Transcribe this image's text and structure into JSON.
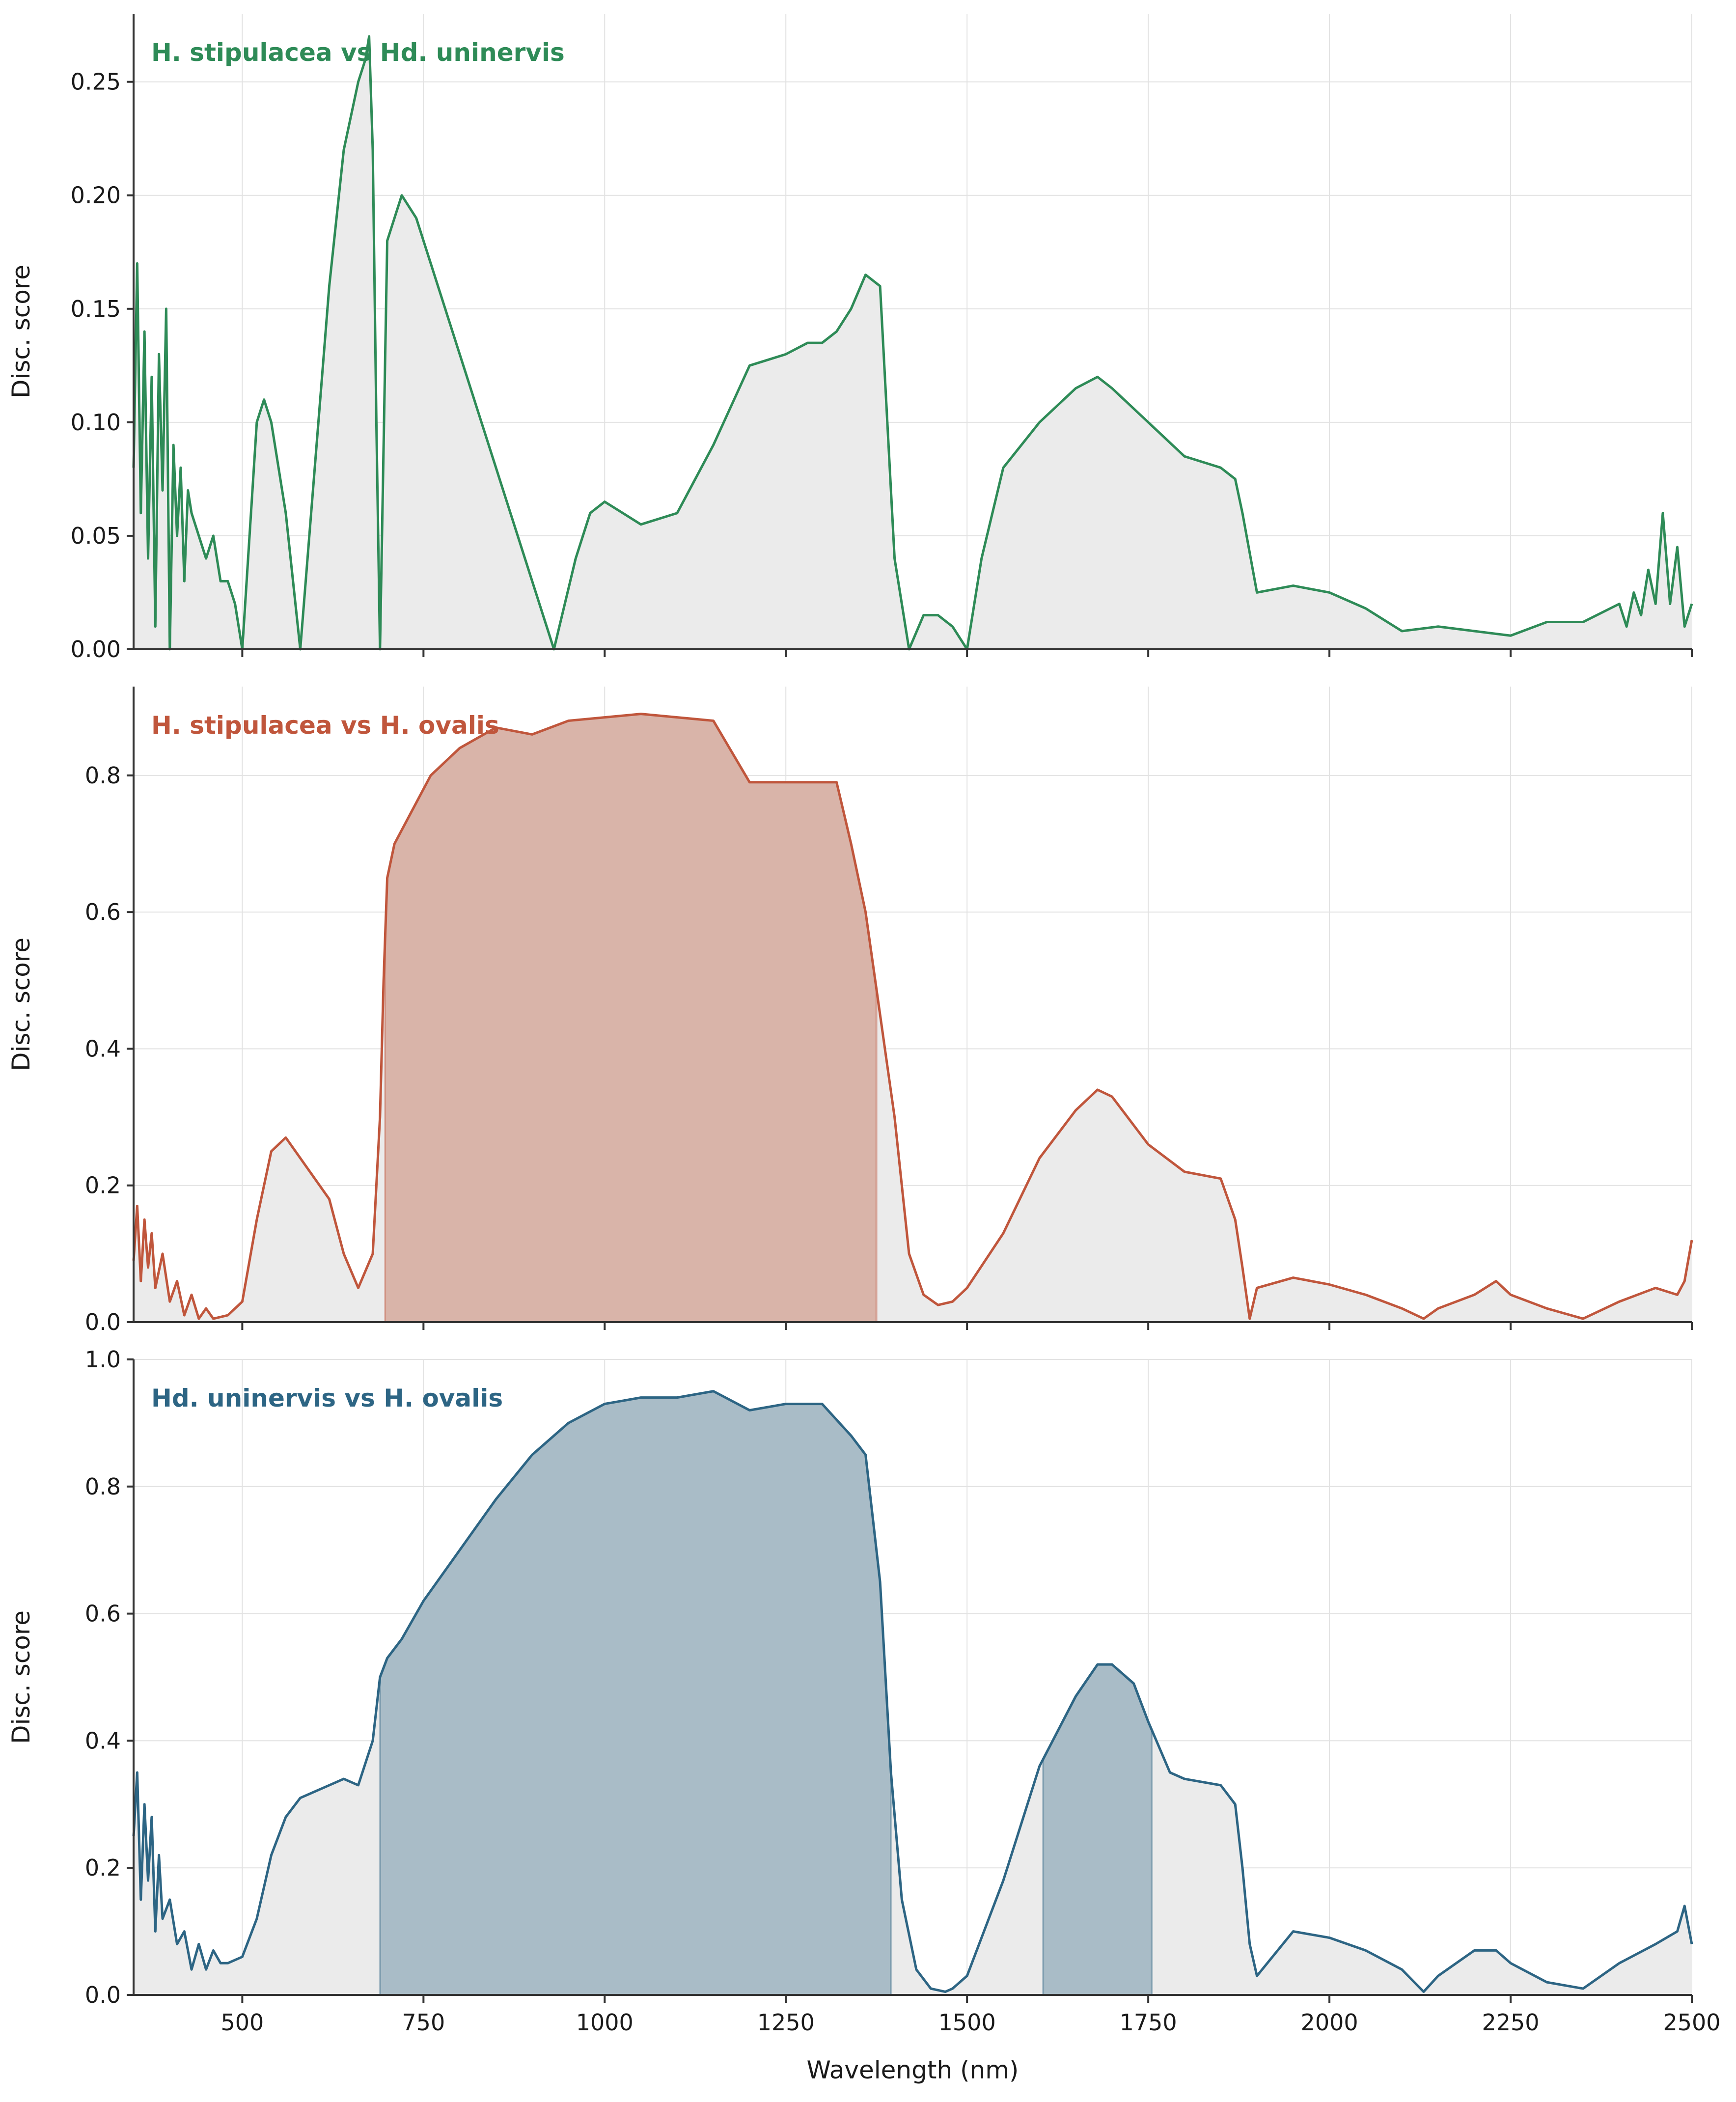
{
  "chart_data": [
    {
      "type": "area",
      "title": "H. stipulacea vs Hd. uninervis",
      "ylabel": "Disc. score",
      "xlabel": "",
      "xlim": [
        350,
        2500
      ],
      "ylim": [
        0,
        0.28
      ],
      "xticks": [
        500,
        750,
        1000,
        1250,
        1500,
        1750,
        2000,
        2250,
        2500
      ],
      "yticks": [
        0.0,
        0.05,
        0.1,
        0.15,
        0.2,
        0.25
      ],
      "ytick_labels": [
        "0.00",
        "0.05",
        "0.10",
        "0.15",
        "0.20",
        "0.25"
      ],
      "show_xtick_labels": false,
      "grid": true,
      "color": "#2e8b57",
      "fill_color": "#ebebeb",
      "highlight_color": "#c0614a",
      "highlight_ranges": [],
      "series": [
        {
          "x": [
            350,
            355,
            360,
            365,
            370,
            375,
            380,
            385,
            390,
            395,
            400,
            405,
            410,
            415,
            420,
            425,
            430,
            440,
            450,
            460,
            470,
            480,
            490,
            500,
            510,
            520,
            530,
            540,
            560,
            580,
            600,
            620,
            640,
            660,
            670,
            675,
            680,
            685,
            690,
            700,
            720,
            740,
            760,
            780,
            800,
            850,
            900,
            930,
            960,
            980,
            1000,
            1050,
            1100,
            1150,
            1200,
            1250,
            1280,
            1300,
            1320,
            1340,
            1360,
            1380,
            1400,
            1420,
            1440,
            1460,
            1480,
            1500,
            1520,
            1550,
            1600,
            1650,
            1680,
            1700,
            1750,
            1800,
            1850,
            1870,
            1880,
            1900,
            1950,
            2000,
            2050,
            2100,
            2150,
            2200,
            2250,
            2300,
            2350,
            2400,
            2410,
            2420,
            2430,
            2440,
            2450,
            2460,
            2470,
            2480,
            2490,
            2500
          ],
          "y": [
            0.08,
            0.17,
            0.06,
            0.14,
            0.04,
            0.12,
            0.01,
            0.13,
            0.07,
            0.15,
            0.0,
            0.09,
            0.05,
            0.08,
            0.03,
            0.07,
            0.06,
            0.05,
            0.04,
            0.05,
            0.03,
            0.03,
            0.02,
            0.0,
            0.05,
            0.1,
            0.11,
            0.1,
            0.06,
            0.0,
            0.08,
            0.16,
            0.22,
            0.25,
            0.26,
            0.27,
            0.22,
            0.1,
            0.0,
            0.18,
            0.2,
            0.19,
            0.17,
            0.15,
            0.13,
            0.08,
            0.03,
            0.0,
            0.04,
            0.06,
            0.065,
            0.055,
            0.06,
            0.09,
            0.125,
            0.13,
            0.135,
            0.135,
            0.14,
            0.15,
            0.165,
            0.16,
            0.04,
            0.0,
            0.015,
            0.015,
            0.01,
            0.0,
            0.04,
            0.08,
            0.1,
            0.115,
            0.12,
            0.115,
            0.1,
            0.085,
            0.08,
            0.075,
            0.06,
            0.025,
            0.028,
            0.025,
            0.018,
            0.008,
            0.01,
            0.008,
            0.006,
            0.012,
            0.012,
            0.02,
            0.01,
            0.025,
            0.015,
            0.035,
            0.02,
            0.06,
            0.02,
            0.045,
            0.01,
            0.02
          ]
        }
      ]
    },
    {
      "type": "area",
      "title": "H. stipulacea vs H. ovalis",
      "ylabel": "Disc. score",
      "xlabel": "",
      "xlim": [
        350,
        2500
      ],
      "ylim": [
        0,
        0.93
      ],
      "xticks": [
        500,
        750,
        1000,
        1250,
        1500,
        1750,
        2000,
        2250,
        2500
      ],
      "yticks": [
        0.0,
        0.2,
        0.4,
        0.6,
        0.8
      ],
      "ytick_labels": [
        "0.0",
        "0.2",
        "0.4",
        "0.6",
        "0.8"
      ],
      "show_xtick_labels": false,
      "grid": true,
      "color": "#c0563c",
      "fill_color": "#ebebeb",
      "highlight_color": "#d9b4a9",
      "highlight_ranges": [
        [
          697,
          1375
        ]
      ],
      "series": [
        {
          "x": [
            350,
            355,
            360,
            365,
            370,
            375,
            380,
            390,
            400,
            410,
            420,
            430,
            440,
            450,
            460,
            480,
            500,
            520,
            540,
            560,
            580,
            600,
            620,
            640,
            660,
            680,
            690,
            695,
            700,
            710,
            720,
            740,
            760,
            800,
            850,
            900,
            950,
            1000,
            1050,
            1100,
            1150,
            1200,
            1250,
            1300,
            1320,
            1340,
            1360,
            1380,
            1400,
            1420,
            1440,
            1460,
            1480,
            1500,
            1550,
            1600,
            1650,
            1680,
            1700,
            1750,
            1800,
            1850,
            1870,
            1880,
            1890,
            1900,
            1950,
            2000,
            2050,
            2100,
            2130,
            2150,
            2200,
            2230,
            2250,
            2300,
            2350,
            2400,
            2450,
            2480,
            2490,
            2500
          ],
          "y": [
            0.09,
            0.17,
            0.06,
            0.15,
            0.08,
            0.13,
            0.05,
            0.1,
            0.03,
            0.06,
            0.01,
            0.04,
            0.005,
            0.02,
            0.005,
            0.01,
            0.03,
            0.15,
            0.25,
            0.27,
            0.24,
            0.21,
            0.18,
            0.1,
            0.05,
            0.1,
            0.3,
            0.5,
            0.65,
            0.7,
            0.72,
            0.76,
            0.8,
            0.84,
            0.87,
            0.86,
            0.88,
            0.885,
            0.89,
            0.885,
            0.88,
            0.79,
            0.79,
            0.79,
            0.79,
            0.7,
            0.6,
            0.45,
            0.3,
            0.1,
            0.04,
            0.025,
            0.03,
            0.05,
            0.13,
            0.24,
            0.31,
            0.34,
            0.33,
            0.26,
            0.22,
            0.21,
            0.15,
            0.08,
            0.005,
            0.05,
            0.065,
            0.055,
            0.04,
            0.02,
            0.005,
            0.02,
            0.04,
            0.06,
            0.04,
            0.02,
            0.005,
            0.03,
            0.05,
            0.04,
            0.06,
            0.12
          ]
        }
      ]
    },
    {
      "type": "area",
      "title": "Hd. uninervis vs H. ovalis",
      "ylabel": "Disc. score",
      "xlabel": "Wavelength (nm)",
      "xlim": [
        350,
        2500
      ],
      "ylim": [
        0,
        1.0
      ],
      "xticks": [
        500,
        750,
        1000,
        1250,
        1500,
        1750,
        2000,
        2250,
        2500
      ],
      "yticks": [
        0.0,
        0.2,
        0.4,
        0.6,
        0.8,
        1.0
      ],
      "ytick_labels": [
        "0.0",
        "0.2",
        "0.4",
        "0.6",
        "0.8",
        "1.0"
      ],
      "xtick_labels": [
        "500",
        "750",
        "1000",
        "1250",
        "1500",
        "1750",
        "2000",
        "2250",
        "2500"
      ],
      "show_xtick_labels": true,
      "grid": true,
      "color": "#2d6584",
      "fill_color": "#ebebeb",
      "highlight_color": "#a9bcc7",
      "highlight_ranges": [
        [
          690,
          1395
        ],
        [
          1605,
          1755
        ]
      ],
      "series": [
        {
          "x": [
            350,
            355,
            360,
            365,
            370,
            375,
            380,
            385,
            390,
            400,
            410,
            420,
            430,
            440,
            450,
            460,
            470,
            480,
            500,
            520,
            540,
            560,
            580,
            600,
            620,
            640,
            660,
            680,
            690,
            700,
            720,
            750,
            800,
            850,
            900,
            950,
            1000,
            1050,
            1100,
            1150,
            1200,
            1250,
            1300,
            1340,
            1360,
            1380,
            1395,
            1410,
            1430,
            1450,
            1470,
            1480,
            1500,
            1550,
            1600,
            1650,
            1680,
            1700,
            1730,
            1750,
            1780,
            1800,
            1850,
            1870,
            1880,
            1890,
            1900,
            1950,
            2000,
            2050,
            2100,
            2130,
            2150,
            2200,
            2230,
            2250,
            2300,
            2350,
            2400,
            2450,
            2480,
            2490,
            2500
          ],
          "y": [
            0.25,
            0.35,
            0.15,
            0.3,
            0.18,
            0.28,
            0.1,
            0.22,
            0.12,
            0.15,
            0.08,
            0.1,
            0.04,
            0.08,
            0.04,
            0.07,
            0.05,
            0.05,
            0.06,
            0.12,
            0.22,
            0.28,
            0.31,
            0.32,
            0.33,
            0.34,
            0.33,
            0.4,
            0.5,
            0.53,
            0.56,
            0.62,
            0.7,
            0.78,
            0.85,
            0.9,
            0.93,
            0.94,
            0.94,
            0.95,
            0.92,
            0.93,
            0.93,
            0.88,
            0.85,
            0.65,
            0.35,
            0.15,
            0.04,
            0.01,
            0.005,
            0.01,
            0.03,
            0.18,
            0.36,
            0.47,
            0.52,
            0.52,
            0.49,
            0.43,
            0.35,
            0.34,
            0.33,
            0.3,
            0.2,
            0.08,
            0.03,
            0.1,
            0.09,
            0.07,
            0.04,
            0.005,
            0.03,
            0.07,
            0.07,
            0.05,
            0.02,
            0.01,
            0.05,
            0.08,
            0.1,
            0.14,
            0.08
          ]
        }
      ]
    }
  ]
}
